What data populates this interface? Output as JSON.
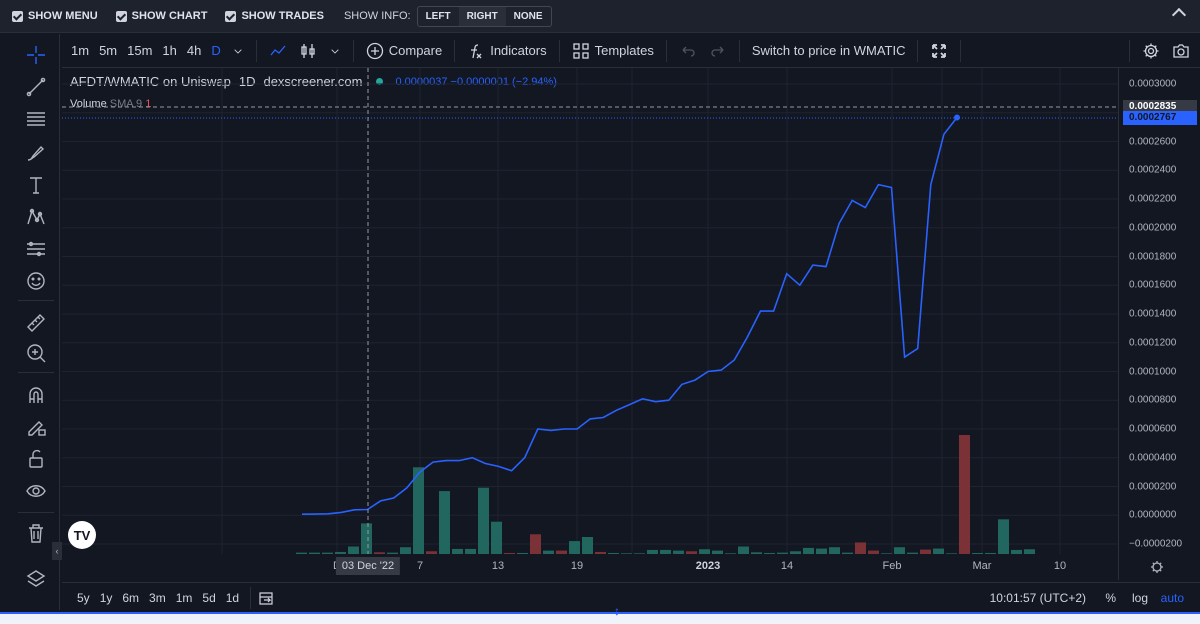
{
  "topbar": {
    "show_menu": "SHOW MENU",
    "show_chart": "SHOW CHART",
    "show_trades": "SHOW TRADES",
    "show_info": "SHOW INFO:",
    "info_options": [
      "LEFT",
      "RIGHT",
      "NONE"
    ],
    "info_selected": "RIGHT"
  },
  "toolbar": {
    "timeframes": [
      "1m",
      "5m",
      "15m",
      "1h",
      "4h",
      "D"
    ],
    "active_timeframe": "D",
    "compare": "Compare",
    "indicators": "Indicators",
    "templates": "Templates",
    "switch_price": "Switch to price in WMATIC"
  },
  "legend": {
    "pair": "AFDT/WMATIC on Uniswap",
    "interval": "1D",
    "source": "dexscreener.com",
    "values": "0.0000037 −0.0000001 (−2.94%)",
    "volume_label": "Volume",
    "sma_label": "SMA 9",
    "sma_value": "1"
  },
  "price_scale": {
    "ticks": [
      "0.0003000",
      "0.0002600",
      "0.0002400",
      "0.0002200",
      "0.0002000",
      "0.0001800",
      "0.0001600",
      "0.0001400",
      "0.0001200",
      "0.0001000",
      "0.0000800",
      "0.0000600",
      "0.0000400",
      "0.0000200",
      "0.0000000",
      "−0.0000200"
    ],
    "crosshair_label": "0.0002835",
    "last_price_label": "0.0002767"
  },
  "time_scale": {
    "ticks": [
      "D",
      "7",
      "13",
      "19",
      "2023",
      "14",
      "Feb",
      "Mar",
      "10"
    ],
    "crosshair_label": "03 Dec '22"
  },
  "bottombar": {
    "ranges": [
      "5y",
      "1y",
      "6m",
      "3m",
      "1m",
      "5d",
      "1d"
    ],
    "clock": "10:01:57 (UTC+2)",
    "percent": "%",
    "log": "log",
    "auto": "auto"
  },
  "colors": {
    "background": "#131722",
    "line": "#2962ff",
    "up_volume": "#26a69a",
    "down_volume": "#ef5350"
  },
  "chart_data": {
    "type": "line",
    "series": [
      {
        "values": [
          7e-07,
          8e-07,
          1e-06,
          2e-06,
          3.8e-06,
          4e-06,
          1e-05,
          1.2e-05,
          1.9e-05,
          3e-05,
          3.7e-05,
          3.8e-05,
          3.8e-05,
          4e-05,
          3.6e-05,
          3.4e-05,
          3.1e-05,
          4e-05,
          6e-05,
          5.9e-05,
          6e-05,
          6e-05,
          6.7e-05,
          6.8e-05,
          7.3e-05,
          7.7e-05,
          8.1e-05,
          7.9e-05,
          8e-05,
          9.1e-05,
          9.4e-05,
          0.0001,
          0.000101,
          0.000108,
          0.000124,
          0.000142,
          0.000142,
          0.000168,
          0.00016,
          0.000174,
          0.000173,
          0.000203,
          0.000219,
          0.000214,
          0.00023,
          0.000228,
          0.00011,
          0.000116,
          0.00023,
          0.000265,
          0.0002767
        ]
      }
    ],
    "volume": [
      {
        "v": 0.4,
        "up": true
      },
      {
        "v": 0.4,
        "up": true
      },
      {
        "v": 0.4,
        "up": true
      },
      {
        "v": 0.6,
        "up": true
      },
      {
        "v": 2.2,
        "up": true
      },
      {
        "v": 9.0,
        "up": true
      },
      {
        "v": 0.5,
        "up": false
      },
      {
        "v": 0.4,
        "up": true
      },
      {
        "v": 2.0,
        "up": true
      },
      {
        "v": 25.5,
        "up": true
      },
      {
        "v": 0.8,
        "up": false
      },
      {
        "v": 18.5,
        "up": true
      },
      {
        "v": 1.5,
        "up": true
      },
      {
        "v": 1.5,
        "up": true
      },
      {
        "v": 19.5,
        "up": true
      },
      {
        "v": 9.5,
        "up": true
      },
      {
        "v": 0.3,
        "up": false
      },
      {
        "v": 0.3,
        "up": true
      },
      {
        "v": 5.8,
        "up": false
      },
      {
        "v": 1.0,
        "up": true
      },
      {
        "v": 1.0,
        "up": false
      },
      {
        "v": 3.8,
        "up": true
      },
      {
        "v": 5.0,
        "up": true
      },
      {
        "v": 0.6,
        "up": false
      },
      {
        "v": 0.3,
        "up": true
      },
      {
        "v": 0.2,
        "up": true
      },
      {
        "v": 0.2,
        "up": true
      },
      {
        "v": 1.2,
        "up": true
      },
      {
        "v": 1.2,
        "up": true
      },
      {
        "v": 1.0,
        "up": true
      },
      {
        "v": 0.8,
        "up": false
      },
      {
        "v": 1.4,
        "up": true
      },
      {
        "v": 1.0,
        "up": true
      },
      {
        "v": 0.2,
        "up": true
      },
      {
        "v": 2.2,
        "up": true
      },
      {
        "v": 0.5,
        "up": true
      },
      {
        "v": 0.3,
        "up": true
      },
      {
        "v": 0.4,
        "up": true
      },
      {
        "v": 0.8,
        "up": true
      },
      {
        "v": 1.8,
        "up": true
      },
      {
        "v": 1.6,
        "up": true
      },
      {
        "v": 2.0,
        "up": true
      },
      {
        "v": 0.4,
        "up": true
      },
      {
        "v": 3.4,
        "up": false
      },
      {
        "v": 1.0,
        "up": false
      },
      {
        "v": 0.2,
        "up": true
      },
      {
        "v": 2.0,
        "up": true
      },
      {
        "v": 0.4,
        "up": true
      },
      {
        "v": 1.3,
        "up": false
      },
      {
        "v": 1.6,
        "up": true
      },
      {
        "v": 0.2,
        "up": true
      },
      {
        "v": 35.0,
        "up": false
      },
      {
        "v": 0.3,
        "up": true
      },
      {
        "v": 0.3,
        "up": true
      },
      {
        "v": 10.2,
        "up": true
      },
      {
        "v": 1.2,
        "up": true
      },
      {
        "v": 1.4,
        "up": true
      }
    ],
    "ylim": [
      -2e-05,
      0.0003
    ]
  }
}
